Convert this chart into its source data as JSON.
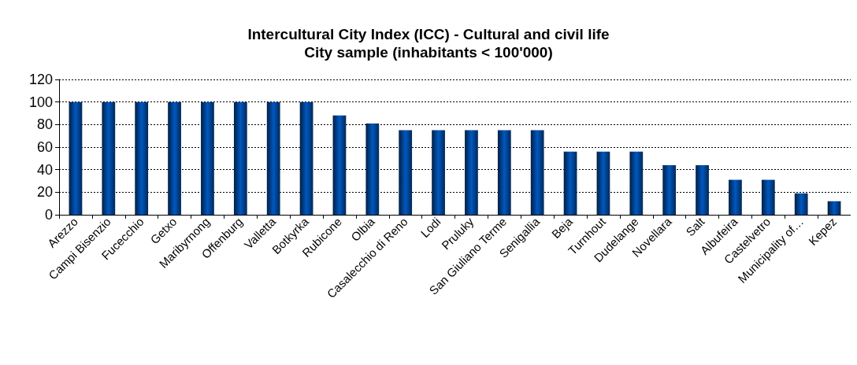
{
  "chart_data": {
    "type": "bar",
    "title": "Intercultural City Index (ICC) - Cultural and civil life",
    "subtitle": "City sample (inhabitants < 100'000)",
    "categories": [
      "Arezzo",
      "Campi Bisenzio",
      "Fucecchio",
      "Getxo",
      "Maribyrnong",
      "Offenburg",
      "Valletta",
      "Botkyrka",
      "Rubicone",
      "Olbia",
      "Casalecchio di Reno",
      "Lodi",
      "Pruluky",
      "San Giuliano Terme",
      "Senigallia",
      "Beja",
      "Turnhout",
      "Dudelange",
      "Novellara",
      "Salt",
      "Albufeira",
      "Castelvetro",
      "Municipality of…",
      "Kepez"
    ],
    "values": [
      100,
      100,
      100,
      100,
      100,
      100,
      100,
      100,
      88,
      81,
      75,
      75,
      75,
      75,
      75,
      56,
      56,
      56,
      44,
      44,
      31,
      31,
      19,
      12
    ],
    "color": "#0058c0",
    "ylim": [
      0,
      120
    ],
    "yticks": [
      0,
      20,
      40,
      60,
      80,
      100,
      120
    ],
    "grid": "y"
  }
}
